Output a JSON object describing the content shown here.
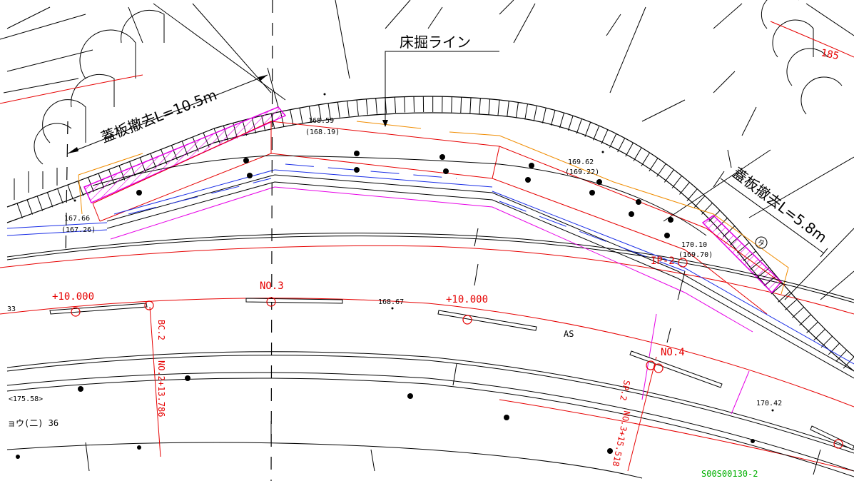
{
  "annotations": {
    "cover_removal_left": "蓋板撤去L=10.5m",
    "cover_removal_right": "蓋板撤去L=5.8m",
    "floor_line": "床掘ライン"
  },
  "elevations": [
    {
      "id": "e1",
      "value": "168.59",
      "planned": "(168.19)"
    },
    {
      "id": "e2",
      "value": "169.62",
      "planned": "(169.22)"
    },
    {
      "id": "e3",
      "value": "167.66",
      "planned": "(167.26)"
    },
    {
      "id": "e4",
      "value": "170.10",
      "planned": "(169.70)"
    }
  ],
  "spot_levels": {
    "s1": "168.67",
    "s2": "170.42",
    "s3": "<175.58>"
  },
  "stations": {
    "plus_left": "+10.000",
    "plus_right": "+10.000",
    "no3": "NO.3",
    "no4": "NO.4",
    "ip2": "IP-2",
    "bc2": "BC.2",
    "bc2_station": "NO.2+13.786",
    "sp2": "SP.2",
    "sp2_station": "NO.3+15.518"
  },
  "misc": {
    "as": "AS",
    "contour_185": "185",
    "left_edge_num": "33",
    "road_name": "ョウ(二) 36",
    "circle_symbol": "タ",
    "drawing_code": "S00S00130-2"
  },
  "colors": {
    "line": "#000000",
    "red": "#e60000",
    "blue": "#1a2ee6",
    "magenta": "#e600e6",
    "orange": "#f08c00",
    "green": "#00b000"
  }
}
